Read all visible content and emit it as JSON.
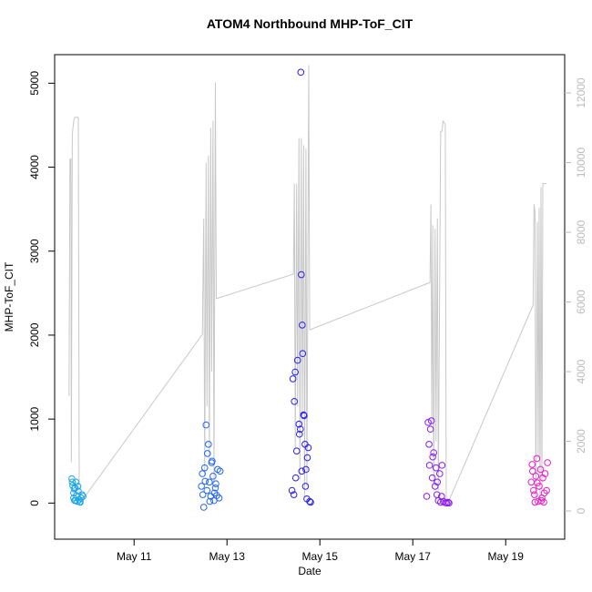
{
  "chart_data": {
    "type": "scatter",
    "title": "ATOM4 Northbound MHP-ToF_CIT",
    "x_label": "Date",
    "y_label": "MHP-ToF_CIT",
    "xlim": [
      9.29,
      20.27
    ],
    "ylim": [
      -430,
      5340
    ],
    "y2lim": [
      -810,
      13100
    ],
    "xticks": [
      {
        "value": 11,
        "label": "May 11"
      },
      {
        "value": 13,
        "label": "May 13"
      },
      {
        "value": 15,
        "label": "May 15"
      },
      {
        "value": 17,
        "label": "May 17"
      },
      {
        "value": 19,
        "label": "May 19"
      }
    ],
    "yticks": [
      0,
      1000,
      2000,
      3000,
      4000,
      5000
    ],
    "y2ticks": [
      0,
      2000,
      4000,
      6000,
      8000,
      10000,
      12000
    ],
    "y2_color": "#bbbbbb",
    "series": [
      {
        "style": "line",
        "axis": "y2",
        "color": "#c8c8c8",
        "x": [
          9.6,
          9.62,
          9.64,
          9.65,
          9.67,
          9.7,
          9.72,
          9.8,
          9.82,
          9.88,
          12.47,
          12.5,
          12.52,
          12.55,
          12.57,
          12.6,
          12.62,
          12.65,
          12.67,
          12.7,
          12.72,
          12.75,
          12.77,
          12.78,
          14.43,
          14.45,
          14.47,
          14.5,
          14.52,
          14.55,
          14.57,
          14.6,
          14.62,
          14.65,
          14.67,
          14.7,
          14.72,
          14.76,
          14.78,
          17.37,
          17.39,
          17.41,
          17.43,
          17.45,
          17.48,
          17.5,
          17.53,
          17.55,
          17.6,
          17.63,
          17.65,
          17.7,
          17.72,
          17.78,
          19.59,
          19.61,
          19.63,
          19.65,
          19.68,
          19.7,
          19.72,
          19.74,
          19.76,
          19.78,
          19.8,
          19.88
        ],
        "values": [
          3300,
          10100,
          10100,
          1400,
          10800,
          11200,
          11300,
          11300,
          300,
          300,
          5070,
          8400,
          1000,
          10000,
          3000,
          10200,
          1500,
          11000,
          4000,
          11200,
          800,
          12300,
          6100,
          6100,
          6800,
          9400,
          1800,
          9400,
          3000,
          10700,
          900,
          10700,
          2500,
          10500,
          400,
          10400,
          700,
          12800,
          5200,
          6560,
          8800,
          2500,
          8200,
          700,
          8100,
          2000,
          8400,
          600,
          10900,
          10900,
          11200,
          11100,
          300,
          300,
          5910,
          8800,
          8600,
          400,
          8300,
          1500,
          8700,
          300,
          9300,
          600,
          9400,
          9400
        ]
      },
      {
        "style": "points",
        "color": "#1ca6e8",
        "x": [
          9.66,
          9.68,
          9.7,
          9.7,
          9.72,
          9.73,
          9.75,
          9.76,
          9.78,
          9.8,
          9.82,
          9.84,
          9.86,
          9.88,
          9.9,
          9.67,
          9.71,
          9.74,
          9.79,
          9.83
        ],
        "values": [
          290,
          210,
          120,
          60,
          30,
          180,
          250,
          90,
          20,
          140,
          40,
          10,
          60,
          100,
          80,
          250,
          170,
          30,
          200,
          15
        ]
      },
      {
        "style": "points",
        "color": "#2466f2",
        "x": [
          12.45,
          12.47,
          12.5,
          12.52,
          12.55,
          12.57,
          12.6,
          12.62,
          12.65,
          12.68,
          12.7,
          12.72,
          12.75,
          12.78,
          12.8,
          12.83,
          12.85,
          12.53,
          12.58,
          12.63,
          12.73,
          12.48,
          12.67,
          12.76
        ],
        "values": [
          200,
          350,
          -50,
          420,
          930,
          150,
          700,
          250,
          80,
          500,
          320,
          30,
          180,
          90,
          400,
          60,
          380,
          260,
          590,
          20,
          120,
          100,
          480,
          230
        ]
      },
      {
        "style": "points",
        "color": "#2a1ef2",
        "x": [
          14.4,
          14.42,
          14.45,
          14.47,
          14.5,
          14.52,
          14.55,
          14.58,
          14.59,
          14.6,
          14.62,
          14.63,
          14.65,
          14.68,
          14.7,
          14.72,
          14.75,
          14.78,
          14.8,
          14.48,
          14.56,
          14.66,
          14.73,
          14.44,
          14.61,
          14.69
        ],
        "values": [
          150,
          1480,
          1210,
          1560,
          620,
          1700,
          940,
          880,
          5130,
          2720,
          2120,
          1780,
          1050,
          700,
          400,
          50,
          660,
          20,
          10,
          300,
          820,
          1040,
          540,
          100,
          380,
          200
        ]
      },
      {
        "style": "points",
        "color": "#8a1cf0",
        "x": [
          17.3,
          17.33,
          17.36,
          17.38,
          17.4,
          17.42,
          17.45,
          17.48,
          17.5,
          17.52,
          17.55,
          17.58,
          17.6,
          17.63,
          17.66,
          17.7,
          17.73,
          17.76,
          17.78,
          17.35,
          17.43,
          17.53,
          17.62
        ],
        "values": [
          80,
          960,
          450,
          880,
          980,
          300,
          600,
          200,
          420,
          100,
          30,
          350,
          10,
          450,
          20,
          5,
          0,
          10,
          0,
          700,
          550,
          250,
          80
        ]
      },
      {
        "style": "points",
        "color": "#e81cc8",
        "x": [
          19.55,
          19.57,
          19.6,
          19.62,
          19.65,
          19.67,
          19.7,
          19.72,
          19.75,
          19.78,
          19.8,
          19.82,
          19.85,
          19.88,
          19.9,
          19.58,
          19.68,
          19.77,
          19.83,
          19.63
        ],
        "values": [
          250,
          460,
          150,
          100,
          320,
          530,
          20,
          200,
          400,
          60,
          300,
          10,
          350,
          150,
          480,
          380,
          240,
          30,
          120,
          10
        ]
      }
    ]
  }
}
